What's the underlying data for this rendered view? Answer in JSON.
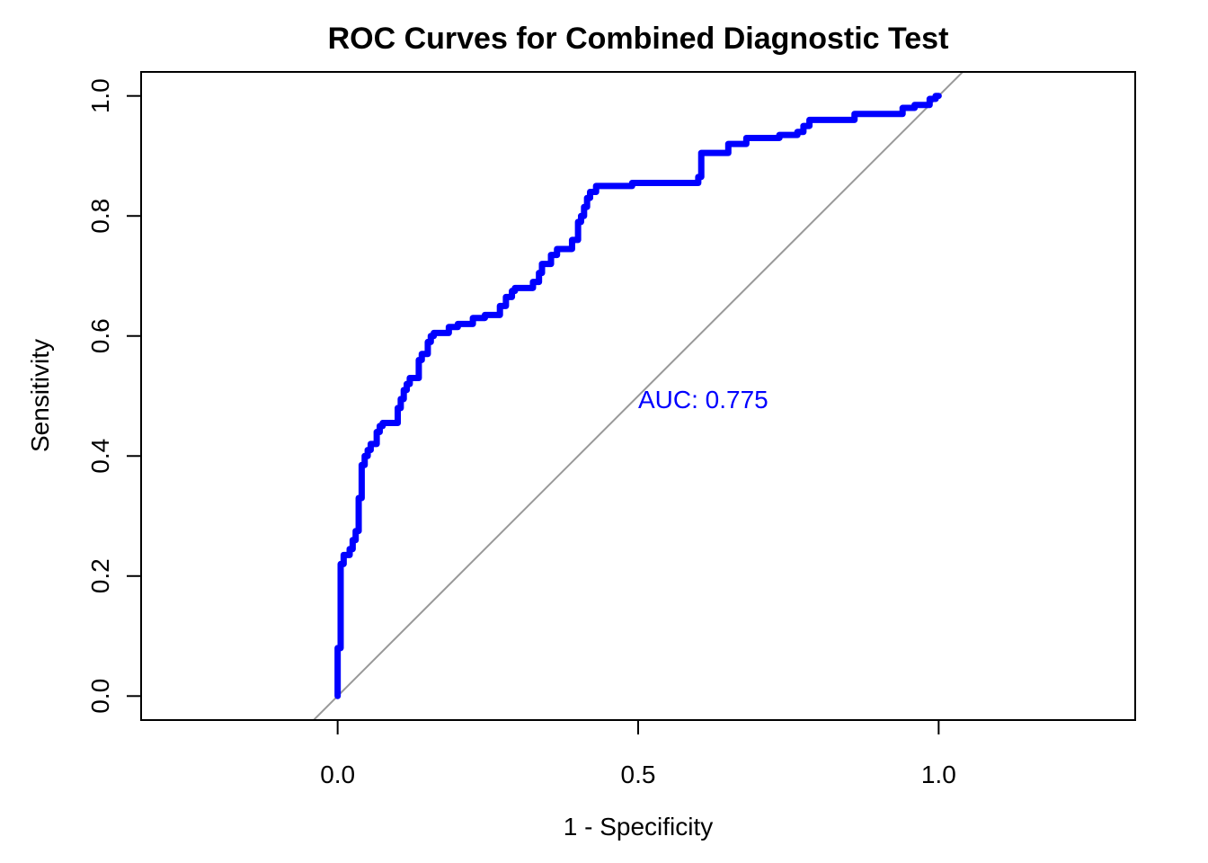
{
  "chart_data": {
    "type": "line",
    "title": "ROC Curves for Combined Diagnostic Test",
    "xlabel": "1 - Specificity",
    "ylabel": "Sensitivity",
    "xlim": [
      -0.327,
      1.327
    ],
    "ylim": [
      -0.04,
      1.04
    ],
    "xticks": [
      0.0,
      0.5,
      1.0
    ],
    "xtick_labels": [
      "0.0",
      "0.5",
      "1.0"
    ],
    "yticks": [
      0.0,
      0.2,
      0.4,
      0.6,
      0.8,
      1.0
    ],
    "ytick_labels": [
      "0.0",
      "0.2",
      "0.4",
      "0.6",
      "0.8",
      "1.0"
    ],
    "grid": false,
    "legend": "none",
    "annotation": {
      "text": "AUC: 0.775",
      "x": 0.5,
      "y": 0.48,
      "color": "#0000ff"
    },
    "reference_line": {
      "type": "diagonal",
      "color": "#999999"
    },
    "series": [
      {
        "color": "#0000ff",
        "points": [
          [
            0.0,
            0.0
          ],
          [
            0.0,
            0.08
          ],
          [
            0.005,
            0.08
          ],
          [
            0.005,
            0.22
          ],
          [
            0.01,
            0.22
          ],
          [
            0.01,
            0.235
          ],
          [
            0.02,
            0.235
          ],
          [
            0.02,
            0.245
          ],
          [
            0.025,
            0.245
          ],
          [
            0.025,
            0.26
          ],
          [
            0.03,
            0.26
          ],
          [
            0.03,
            0.275
          ],
          [
            0.035,
            0.275
          ],
          [
            0.035,
            0.33
          ],
          [
            0.04,
            0.33
          ],
          [
            0.04,
            0.385
          ],
          [
            0.045,
            0.385
          ],
          [
            0.045,
            0.4
          ],
          [
            0.05,
            0.4
          ],
          [
            0.05,
            0.41
          ],
          [
            0.055,
            0.41
          ],
          [
            0.055,
            0.42
          ],
          [
            0.065,
            0.42
          ],
          [
            0.065,
            0.44
          ],
          [
            0.07,
            0.44
          ],
          [
            0.07,
            0.45
          ],
          [
            0.075,
            0.45
          ],
          [
            0.075,
            0.455
          ],
          [
            0.1,
            0.455
          ],
          [
            0.1,
            0.48
          ],
          [
            0.105,
            0.48
          ],
          [
            0.105,
            0.495
          ],
          [
            0.11,
            0.495
          ],
          [
            0.11,
            0.51
          ],
          [
            0.115,
            0.51
          ],
          [
            0.115,
            0.52
          ],
          [
            0.12,
            0.52
          ],
          [
            0.12,
            0.53
          ],
          [
            0.135,
            0.53
          ],
          [
            0.135,
            0.56
          ],
          [
            0.14,
            0.56
          ],
          [
            0.14,
            0.57
          ],
          [
            0.15,
            0.57
          ],
          [
            0.15,
            0.59
          ],
          [
            0.155,
            0.59
          ],
          [
            0.155,
            0.6
          ],
          [
            0.16,
            0.6
          ],
          [
            0.16,
            0.605
          ],
          [
            0.185,
            0.605
          ],
          [
            0.185,
            0.615
          ],
          [
            0.2,
            0.615
          ],
          [
            0.2,
            0.62
          ],
          [
            0.225,
            0.62
          ],
          [
            0.225,
            0.63
          ],
          [
            0.245,
            0.63
          ],
          [
            0.245,
            0.635
          ],
          [
            0.27,
            0.635
          ],
          [
            0.27,
            0.65
          ],
          [
            0.28,
            0.65
          ],
          [
            0.28,
            0.665
          ],
          [
            0.29,
            0.665
          ],
          [
            0.29,
            0.675
          ],
          [
            0.295,
            0.675
          ],
          [
            0.295,
            0.68
          ],
          [
            0.325,
            0.68
          ],
          [
            0.325,
            0.69
          ],
          [
            0.335,
            0.69
          ],
          [
            0.335,
            0.705
          ],
          [
            0.34,
            0.705
          ],
          [
            0.34,
            0.72
          ],
          [
            0.355,
            0.72
          ],
          [
            0.355,
            0.735
          ],
          [
            0.365,
            0.735
          ],
          [
            0.365,
            0.745
          ],
          [
            0.39,
            0.745
          ],
          [
            0.39,
            0.76
          ],
          [
            0.4,
            0.76
          ],
          [
            0.4,
            0.79
          ],
          [
            0.405,
            0.79
          ],
          [
            0.405,
            0.8
          ],
          [
            0.41,
            0.8
          ],
          [
            0.41,
            0.815
          ],
          [
            0.415,
            0.815
          ],
          [
            0.415,
            0.83
          ],
          [
            0.42,
            0.83
          ],
          [
            0.42,
            0.84
          ],
          [
            0.43,
            0.84
          ],
          [
            0.43,
            0.85
          ],
          [
            0.49,
            0.85
          ],
          [
            0.49,
            0.855
          ],
          [
            0.6,
            0.855
          ],
          [
            0.6,
            0.865
          ],
          [
            0.605,
            0.865
          ],
          [
            0.605,
            0.905
          ],
          [
            0.65,
            0.905
          ],
          [
            0.65,
            0.92
          ],
          [
            0.68,
            0.92
          ],
          [
            0.68,
            0.93
          ],
          [
            0.735,
            0.93
          ],
          [
            0.735,
            0.935
          ],
          [
            0.765,
            0.935
          ],
          [
            0.765,
            0.94
          ],
          [
            0.775,
            0.94
          ],
          [
            0.775,
            0.95
          ],
          [
            0.785,
            0.95
          ],
          [
            0.785,
            0.96
          ],
          [
            0.86,
            0.96
          ],
          [
            0.86,
            0.97
          ],
          [
            0.94,
            0.97
          ],
          [
            0.94,
            0.98
          ],
          [
            0.96,
            0.98
          ],
          [
            0.96,
            0.985
          ],
          [
            0.985,
            0.985
          ],
          [
            0.985,
            0.995
          ],
          [
            0.995,
            0.995
          ],
          [
            0.995,
            1.0
          ],
          [
            1.0,
            1.0
          ]
        ]
      }
    ]
  }
}
